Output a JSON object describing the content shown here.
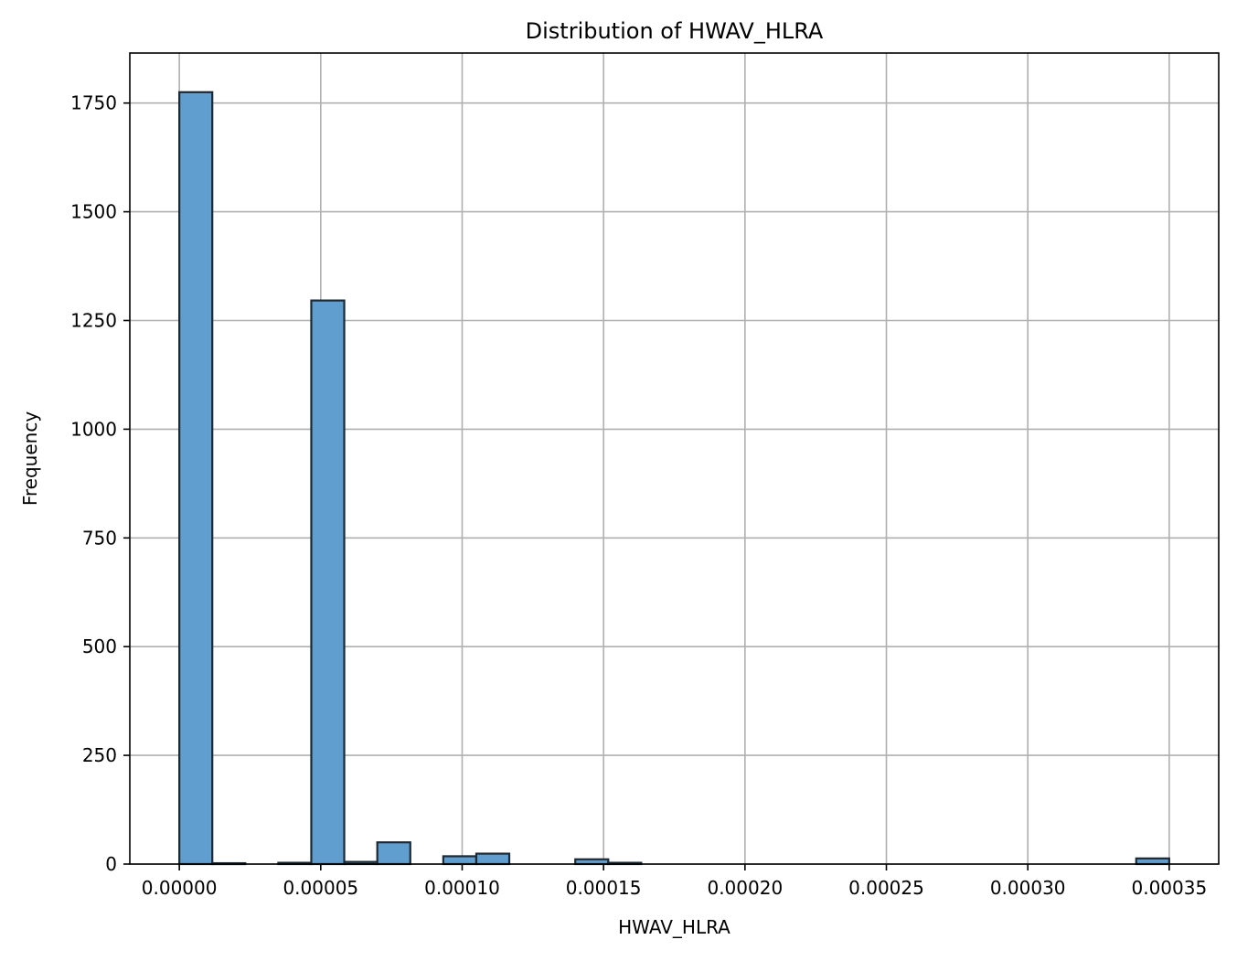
{
  "chart_data": {
    "type": "bar",
    "title": "Distribution of HWAV_HLRA",
    "xlabel": "HWAV_HLRA",
    "ylabel": "Frequency",
    "xlim": [
      -1.75e-05,
      0.0003675
    ],
    "ylim": [
      0,
      1865
    ],
    "xticks": [
      0.0,
      5e-05,
      0.0001,
      0.00015,
      0.0002,
      0.00025,
      0.0003,
      0.00035
    ],
    "xtick_labels": [
      "0.00000",
      "0.00005",
      "0.00010",
      "0.00015",
      "0.00020",
      "0.00025",
      "0.00030",
      "0.00035"
    ],
    "yticks": [
      0,
      250,
      500,
      750,
      1000,
      1250,
      1500,
      1750
    ],
    "ytick_labels": [
      "0",
      "250",
      "500",
      "750",
      "1000",
      "1250",
      "1500",
      "1750"
    ],
    "grid": true,
    "bin_width": 1.166e-05,
    "bins": [
      {
        "x0": 0.0,
        "value": 1775
      },
      {
        "x0": 1.166e-05,
        "value": 2
      },
      {
        "x0": 2.333e-05,
        "value": 0
      },
      {
        "x0": 3.5e-05,
        "value": 3
      },
      {
        "x0": 4.666e-05,
        "value": 1296
      },
      {
        "x0": 5.833e-05,
        "value": 5
      },
      {
        "x0": 7e-05,
        "value": 50
      },
      {
        "x0": 8.166e-05,
        "value": 0
      },
      {
        "x0": 9.333e-05,
        "value": 18
      },
      {
        "x0": 0.000105,
        "value": 24
      },
      {
        "x0": 0.00011666,
        "value": 0
      },
      {
        "x0": 0.00012833,
        "value": 0
      },
      {
        "x0": 0.00014,
        "value": 11
      },
      {
        "x0": 0.00015166,
        "value": 3
      },
      {
        "x0": 0.00016333,
        "value": 0
      },
      {
        "x0": 0.000175,
        "value": 0
      },
      {
        "x0": 0.00018666,
        "value": 0
      },
      {
        "x0": 0.00019833,
        "value": 0
      },
      {
        "x0": 0.00021,
        "value": 0
      },
      {
        "x0": 0.00022166,
        "value": 0
      },
      {
        "x0": 0.00023333,
        "value": 0
      },
      {
        "x0": 0.000245,
        "value": 0
      },
      {
        "x0": 0.00025666,
        "value": 0
      },
      {
        "x0": 0.00026833,
        "value": 0
      },
      {
        "x0": 0.00028,
        "value": 0
      },
      {
        "x0": 0.00029166,
        "value": 0
      },
      {
        "x0": 0.00030333,
        "value": 0
      },
      {
        "x0": 0.000315,
        "value": 0
      },
      {
        "x0": 0.00032666,
        "value": 0
      },
      {
        "x0": 0.00033833,
        "value": 13
      }
    ],
    "colors": {
      "bar_fill": "#5f9ecf",
      "bar_edge": "#1a2a38",
      "grid": "#b0b0b0",
      "axis": "#000000"
    }
  }
}
